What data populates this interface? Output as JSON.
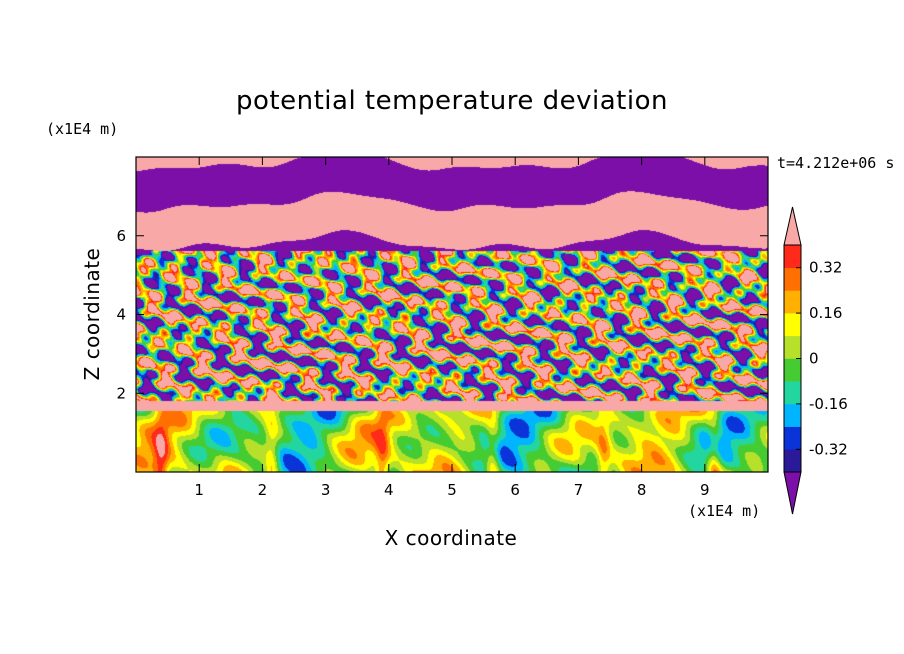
{
  "chart_data": {
    "type": "heatmap",
    "title": "potential temperature deviation",
    "xlabel": "X coordinate",
    "ylabel": "Z coordinate",
    "x_unit_label": "(x1E4 m)",
    "y_unit_label": "(x1E4 m)",
    "time_label": "t=4.212e+06 s",
    "xlim": [
      0,
      10
    ],
    "ylim": [
      0,
      8
    ],
    "x_ticks": [
      1,
      2,
      3,
      4,
      5,
      6,
      7,
      8,
      9
    ],
    "y_ticks": [
      2,
      4,
      6
    ],
    "colorbar": {
      "levels": [
        -0.4,
        -0.32,
        -0.24,
        -0.16,
        -0.08,
        0,
        0.08,
        0.16,
        0.24,
        0.32,
        0.4
      ],
      "tick_labels": [
        "0.32",
        "0.16",
        "0",
        "-0.16",
        "-0.32"
      ],
      "tick_values": [
        0.32,
        0.16,
        0,
        -0.16,
        -0.32
      ],
      "colors_low_to_high": [
        "#7b0fa8",
        "#2a1a9a",
        "#0a34d8",
        "#00b4ff",
        "#23d6a0",
        "#46cc33",
        "#b6e02a",
        "#ffff00",
        "#ffb000",
        "#ff7000",
        "#ff2a1a",
        "#f9a8a8"
      ],
      "extend": "both"
    },
    "field_description": [
      {
        "z_range": [
          5.6,
          8.0
        ],
        "pattern": "alternating layers",
        "values": [
          -0.4,
          0.4
        ]
      },
      {
        "z_range": [
          1.8,
          5.6
        ],
        "pattern": "turbulent mixing",
        "values": [
          -0.4,
          0.4
        ]
      },
      {
        "z_range": [
          0.0,
          1.8
        ],
        "pattern": "convective cells",
        "values": [
          -0.24,
          0.32
        ]
      }
    ]
  }
}
